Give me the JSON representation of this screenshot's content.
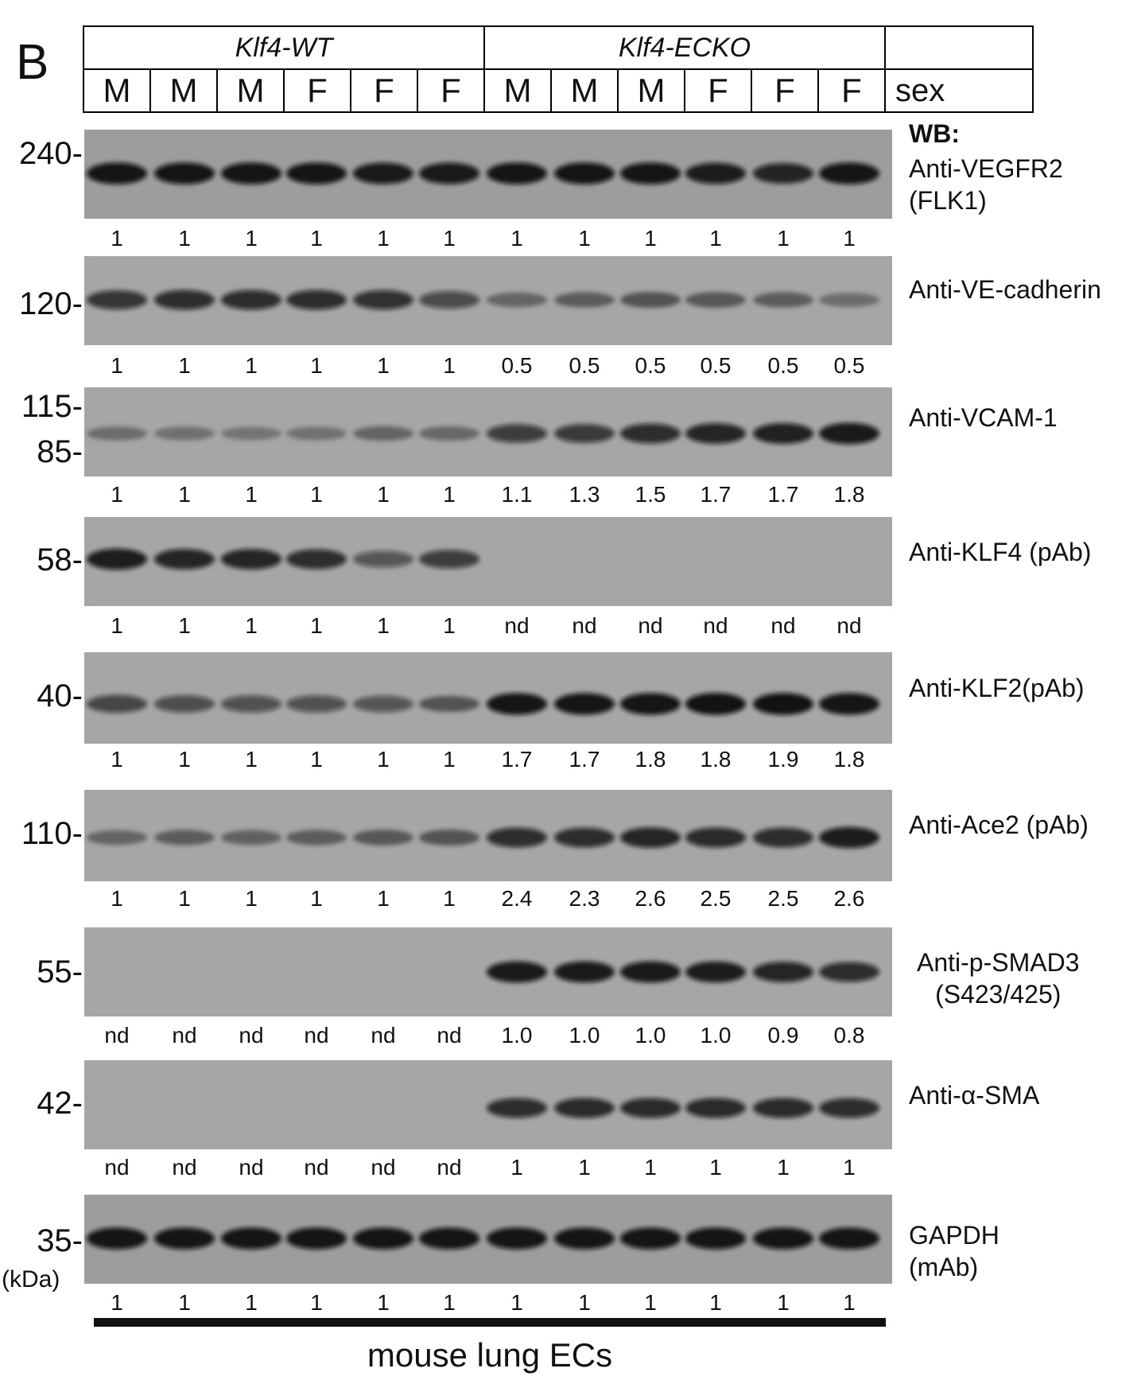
{
  "panel_letter": "B",
  "header": {
    "genotypes": [
      "Klf4-WT",
      "Klf4-ECKO"
    ],
    "sex": [
      "M",
      "M",
      "M",
      "F",
      "F",
      "F",
      "M",
      "M",
      "M",
      "F",
      "F",
      "F"
    ],
    "sex_label": "sex"
  },
  "wb_label": "WB:",
  "kda_label": "(kDa)",
  "blots": [
    {
      "antibody": [
        "Anti-VEGFR2",
        "(FLK1)"
      ],
      "markers": [
        "240-"
      ],
      "bands": [
        0.95,
        0.95,
        0.95,
        0.95,
        0.92,
        0.92,
        0.95,
        0.95,
        0.95,
        0.9,
        0.85,
        0.95
      ],
      "quant": [
        "1",
        "1",
        "1",
        "1",
        "1",
        "1",
        "1",
        "1",
        "1",
        "1",
        "1",
        "1"
      ]
    },
    {
      "antibody": [
        "Anti-VE-cadherin"
      ],
      "markers": [
        "120-"
      ],
      "bands": [
        0.75,
        0.8,
        0.8,
        0.8,
        0.78,
        0.62,
        0.4,
        0.45,
        0.5,
        0.48,
        0.45,
        0.35
      ],
      "quant": [
        "1",
        "1",
        "1",
        "1",
        "1",
        "1",
        "0.5",
        "0.5",
        "0.5",
        "0.5",
        "0.5",
        "0.5"
      ]
    },
    {
      "antibody": [
        "Anti-VCAM-1"
      ],
      "markers": [
        "115-",
        "85-"
      ],
      "bands": [
        0.35,
        0.33,
        0.3,
        0.32,
        0.4,
        0.38,
        0.7,
        0.72,
        0.8,
        0.85,
        0.88,
        0.92
      ],
      "quant": [
        "1",
        "1",
        "1",
        "1",
        "1",
        "1",
        "1.1",
        "1.3",
        "1.5",
        "1.7",
        "1.7",
        "1.8"
      ]
    },
    {
      "antibody": [
        "Anti-KLF4 (pAb)"
      ],
      "markers": [
        "58-"
      ],
      "bands": [
        0.9,
        0.85,
        0.85,
        0.8,
        0.55,
        0.7,
        0,
        0,
        0,
        0,
        0,
        0
      ],
      "quant": [
        "1",
        "1",
        "1",
        "1",
        "1",
        "1",
        "nd",
        "nd",
        "nd",
        "nd",
        "nd",
        "nd"
      ]
    },
    {
      "antibody": [
        "Anti-KLF2(pAb)"
      ],
      "markers": [
        "40-"
      ],
      "bands": [
        0.65,
        0.6,
        0.58,
        0.58,
        0.55,
        0.5,
        0.95,
        0.95,
        0.95,
        0.97,
        0.97,
        0.95
      ],
      "quant": [
        "1",
        "1",
        "1",
        "1",
        "1",
        "1",
        "1.7",
        "1.7",
        "1.8",
        "1.8",
        "1.9",
        "1.8"
      ]
    },
    {
      "antibody": [
        "Anti-Ace2 (pAb)"
      ],
      "markers": [
        "110-"
      ],
      "bands": [
        0.4,
        0.45,
        0.42,
        0.45,
        0.48,
        0.5,
        0.8,
        0.8,
        0.85,
        0.82,
        0.8,
        0.9
      ],
      "quant": [
        "1",
        "1",
        "1",
        "1",
        "1",
        "1",
        "2.4",
        "2.3",
        "2.6",
        "2.5",
        "2.5",
        "2.6"
      ]
    },
    {
      "antibody": [
        "Anti-p-SMAD3",
        "(S423/425)"
      ],
      "markers": [
        "55-"
      ],
      "bands": [
        0,
        0,
        0,
        0,
        0,
        0,
        0.92,
        0.92,
        0.92,
        0.9,
        0.85,
        0.8
      ],
      "quant": [
        "nd",
        "nd",
        "nd",
        "nd",
        "nd",
        "nd",
        "1.0",
        "1.0",
        "1.0",
        "1.0",
        "0.9",
        "0.8"
      ]
    },
    {
      "antibody": [
        "Anti-α-SMA"
      ],
      "markers": [
        "42-"
      ],
      "bands": [
        0,
        0,
        0,
        0,
        0,
        0,
        0.8,
        0.82,
        0.82,
        0.82,
        0.82,
        0.8
      ],
      "quant": [
        "nd",
        "nd",
        "nd",
        "nd",
        "nd",
        "nd",
        "1",
        "1",
        "1",
        "1",
        "1",
        "1"
      ]
    },
    {
      "antibody": [
        "GAPDH",
        "(mAb)"
      ],
      "markers": [
        "35-"
      ],
      "bands": [
        0.95,
        0.95,
        0.95,
        0.95,
        0.95,
        0.95,
        0.95,
        0.95,
        0.95,
        0.95,
        0.95,
        0.95
      ],
      "quant": [
        "1",
        "1",
        "1",
        "1",
        "1",
        "1",
        "1",
        "1",
        "1",
        "1",
        "1",
        "1"
      ]
    }
  ],
  "footer": "mouse lung ECs"
}
